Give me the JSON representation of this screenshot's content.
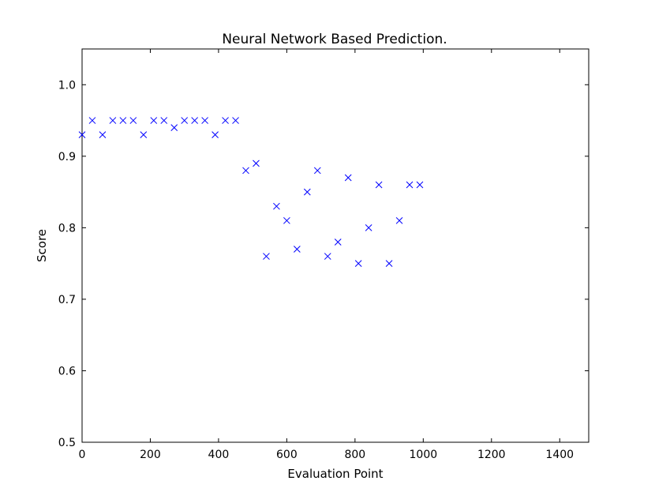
{
  "chart_data": {
    "type": "scatter",
    "title": "Neural Network Based Prediction.",
    "xlabel": "Evaluation Point",
    "ylabel": "Score",
    "xlim": [
      0,
      1485
    ],
    "ylim": [
      0.5,
      1.05
    ],
    "xticks": [
      0,
      200,
      400,
      600,
      800,
      1000,
      1200,
      1400
    ],
    "yticks": [
      0.5,
      0.6,
      0.7,
      0.8,
      0.9,
      1.0
    ],
    "xtick_labels": [
      "0",
      "200",
      "400",
      "600",
      "800",
      "1000",
      "1200",
      "1400"
    ],
    "ytick_labels": [
      "0.5",
      "0.6",
      "0.7",
      "0.8",
      "0.9",
      "1.0"
    ],
    "grid": false,
    "marker": "x",
    "color": "#0000ff",
    "series": [
      {
        "points": [
          [
            0,
            0.93
          ],
          [
            30,
            0.95
          ],
          [
            60,
            0.93
          ],
          [
            90,
            0.95
          ],
          [
            120,
            0.95
          ],
          [
            150,
            0.95
          ],
          [
            180,
            0.93
          ],
          [
            210,
            0.95
          ],
          [
            240,
            0.95
          ],
          [
            270,
            0.94
          ],
          [
            300,
            0.95
          ],
          [
            330,
            0.95
          ],
          [
            360,
            0.95
          ],
          [
            390,
            0.93
          ],
          [
            420,
            0.95
          ],
          [
            450,
            0.95
          ],
          [
            480,
            0.88
          ],
          [
            510,
            0.89
          ],
          [
            540,
            0.76
          ],
          [
            570,
            0.83
          ],
          [
            600,
            0.81
          ],
          [
            630,
            0.77
          ],
          [
            660,
            0.85
          ],
          [
            690,
            0.88
          ],
          [
            720,
            0.76
          ],
          [
            750,
            0.78
          ],
          [
            780,
            0.87
          ],
          [
            810,
            0.75
          ],
          [
            840,
            0.8
          ],
          [
            870,
            0.86
          ],
          [
            900,
            0.75
          ],
          [
            930,
            0.81
          ],
          [
            960,
            0.86
          ],
          [
            990,
            0.86
          ]
        ]
      }
    ]
  }
}
